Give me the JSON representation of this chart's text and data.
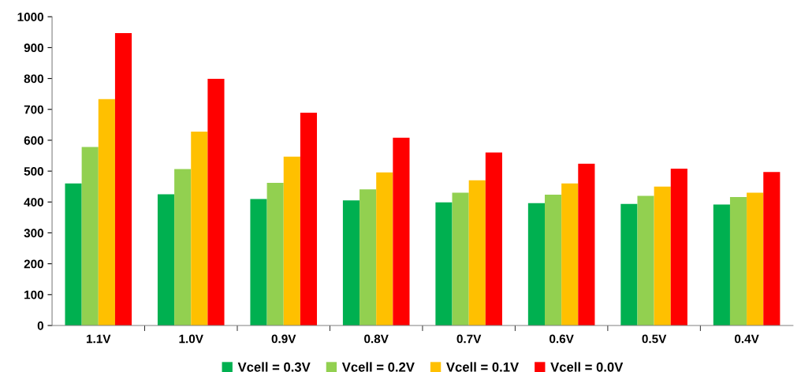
{
  "chart_data": {
    "type": "bar",
    "categories": [
      "1.1V",
      "1.0V",
      "0.9V",
      "0.8V",
      "0.7V",
      "0.6V",
      "0.5V",
      "0.4V"
    ],
    "series": [
      {
        "name": "Vcell = 0.3V",
        "color": "#00b050",
        "values": [
          460,
          425,
          410,
          405,
          399,
          396,
          394,
          392
        ]
      },
      {
        "name": "Vcell = 0.2V",
        "color": "#92d050",
        "values": [
          578,
          507,
          462,
          441,
          430,
          424,
          420,
          416
        ]
      },
      {
        "name": "Vcell = 0.1V",
        "color": "#ffc000",
        "values": [
          733,
          628,
          547,
          496,
          470,
          460,
          450,
          430
        ]
      },
      {
        "name": "Vcell = 0.0V",
        "color": "#ff0000",
        "values": [
          947,
          799,
          689,
          608,
          560,
          524,
          508,
          497
        ]
      }
    ],
    "ylim": [
      0,
      1000
    ],
    "yticks": [
      0,
      100,
      200,
      300,
      400,
      500,
      600,
      700,
      800,
      900,
      1000
    ],
    "grid": false,
    "legend": "bottom"
  }
}
